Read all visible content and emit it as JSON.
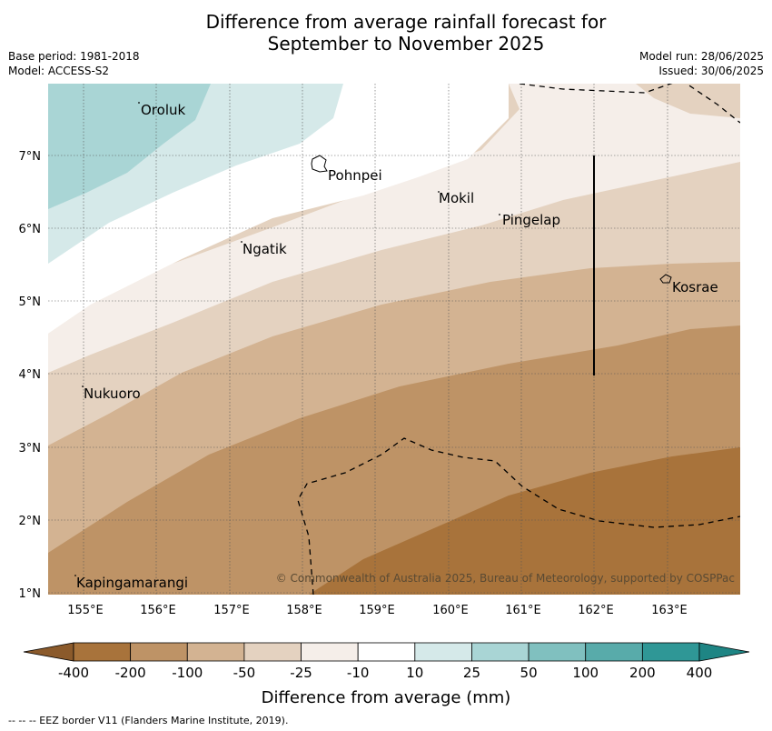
{
  "title_line1": "Difference from average rainfall forecast for",
  "title_line2": "September to November 2025",
  "meta": {
    "base_period": "Base period: 1981-2018",
    "model": "Model: ACCESS-S2",
    "model_run": "Model run: 28/06/2025",
    "issued": "Issued: 30/06/2025"
  },
  "map": {
    "lon_labels": [
      "155°E",
      "156°E",
      "157°E",
      "158°E",
      "159°E",
      "160°E",
      "161°E",
      "162°E",
      "163°E"
    ],
    "lat_labels": [
      "7°N",
      "6°N",
      "5°N",
      "4°N",
      "3°N",
      "2°N",
      "1°N"
    ],
    "places": [
      "Oroluk",
      "Pohnpei",
      "Mokil",
      "Pingelap",
      "Ngatik",
      "Kosrae",
      "Nukuoro",
      "Kapingamarangi"
    ],
    "credit": "© Commonwealth of Australia 2025, Bureau of Meteorology, supported by COSPPac"
  },
  "colorbar": {
    "ticks": [
      "-400",
      "-200",
      "-100",
      "-50",
      "-25",
      "-10",
      "10",
      "25",
      "50",
      "100",
      "200",
      "400"
    ],
    "colors": [
      "#a8733b",
      "#be9366",
      "#d3b392",
      "#e4d2c0",
      "#f5eee9",
      "#ffffff",
      "#d5e9e9",
      "#a9d5d5",
      "#80c0bf",
      "#58abaa",
      "#2f9796"
    ],
    "title": "Difference from average (mm)"
  },
  "footer": "--  --  -- EEZ border V11 (Flanders Marine Institute, 2019)."
}
